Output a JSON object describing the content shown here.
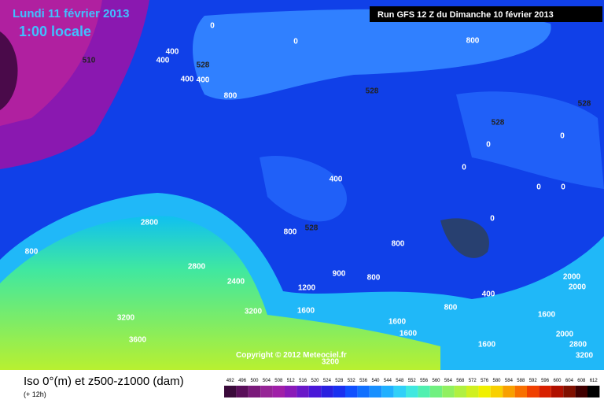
{
  "header": {
    "date": "Lundi 11 février 2013",
    "time": "1:00 locale",
    "run": "Run GFS 12 Z du Dimanche 10 février 2013"
  },
  "footer": {
    "copyright": "Copyright © 2012 Meteociel.fr",
    "title": "Iso 0°(m) et z500-z1000 (dam)",
    "lead": "(+ 12h)"
  },
  "scale": {
    "labels": [
      "492",
      "496",
      "500",
      "504",
      "508",
      "512",
      "516",
      "520",
      "524",
      "528",
      "532",
      "536",
      "540",
      "544",
      "548",
      "552",
      "556",
      "560",
      "564",
      "568",
      "572",
      "576",
      "580",
      "584",
      "588",
      "592",
      "596",
      "600",
      "604",
      "608",
      "612"
    ],
    "colors": [
      "#3a0a3a",
      "#5a0f5a",
      "#7a1a7a",
      "#962596",
      "#a020a8",
      "#8a1ab8",
      "#6a18c8",
      "#4a18d8",
      "#2a20e0",
      "#1a30f0",
      "#1050ff",
      "#1070ff",
      "#1890ff",
      "#20b0ff",
      "#30d0f8",
      "#40e8e0",
      "#50f0b0",
      "#70f080",
      "#90f060",
      "#b0f040",
      "#d0f020",
      "#f0f000",
      "#f8d000",
      "#f8a000",
      "#f87000",
      "#f04000",
      "#d82000",
      "#b01000",
      "#801000",
      "#400000",
      "#000000"
    ]
  },
  "map": {
    "contour_labels": [
      "0",
      "0",
      "800",
      "400",
      "528",
      "400",
      "510",
      "400",
      "400",
      "800",
      "528",
      "528",
      "528",
      "0",
      "0",
      "0",
      "400",
      "0",
      "0",
      "0",
      "800",
      "528",
      "2800",
      "800",
      "800",
      "2800",
      "2400",
      "900",
      "800",
      "2000",
      "1200",
      "2000",
      "400",
      "3200",
      "1600",
      "800",
      "1600",
      "3200",
      "1600",
      "1600",
      "3600",
      "1600",
      "2000",
      "2800",
      "3200",
      "3200"
    ]
  }
}
